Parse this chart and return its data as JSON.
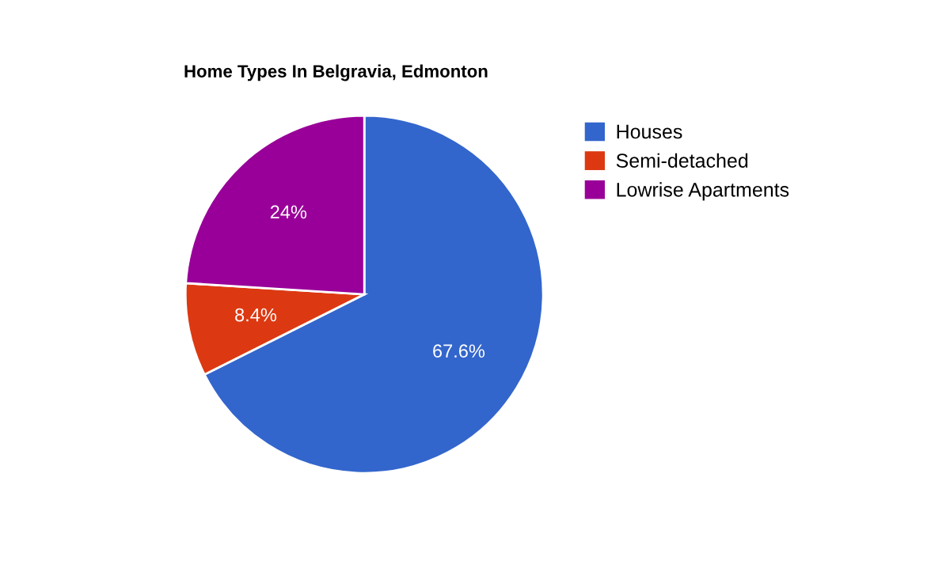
{
  "chart_data": {
    "type": "pie",
    "title": "Home Types In Belgravia, Edmonton",
    "categories": [
      "Houses",
      "Semi-detached",
      "Lowrise Apartments"
    ],
    "values": [
      67.6,
      8.4,
      24
    ],
    "colors": [
      "#3366cc",
      "#dc3912",
      "#990099"
    ],
    "value_labels": [
      "67.6%",
      "8.4%",
      "24%"
    ],
    "legend": "right"
  }
}
